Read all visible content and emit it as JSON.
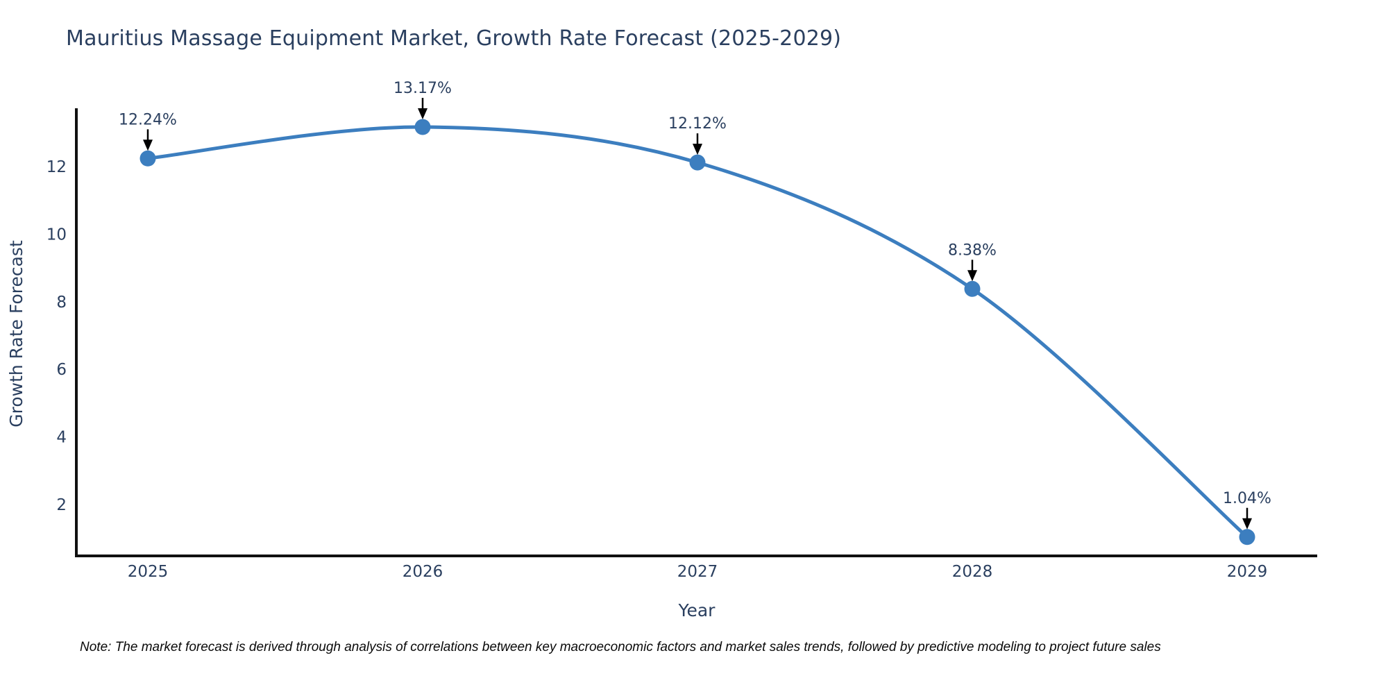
{
  "title": "Mauritius Massage Equipment Market, Growth Rate Forecast (2025-2029)",
  "note": "Note: The market forecast is derived through analysis of correlations between key macroeconomic factors and market sales trends, followed by predictive modeling to project future sales",
  "chart_data": {
    "type": "line",
    "title": "Mauritius Massage Equipment Market, Growth Rate Forecast (2025-2029)",
    "xlabel": "Year",
    "ylabel": "Growth Rate Forecast",
    "x": [
      2025,
      2026,
      2027,
      2028,
      2029
    ],
    "values": [
      12.24,
      13.17,
      12.12,
      8.38,
      1.04
    ],
    "point_labels": [
      "12.24%",
      "13.17%",
      "12.12%",
      "8.38%",
      "1.04%"
    ],
    "yticks": [
      2,
      4,
      6,
      8,
      10,
      12
    ],
    "xlim": [
      2024.74,
      2029.26
    ],
    "ylim": [
      0.48,
      13.67
    ],
    "grid": false,
    "legend": "none",
    "line_shape": "spline",
    "colors": {
      "line": "#3c7ebf",
      "marker": "#3c7ebf",
      "axis": "#101010",
      "text": "#2a3f5f",
      "annotation": "#2a3f5f",
      "arrow": "#000000"
    }
  }
}
